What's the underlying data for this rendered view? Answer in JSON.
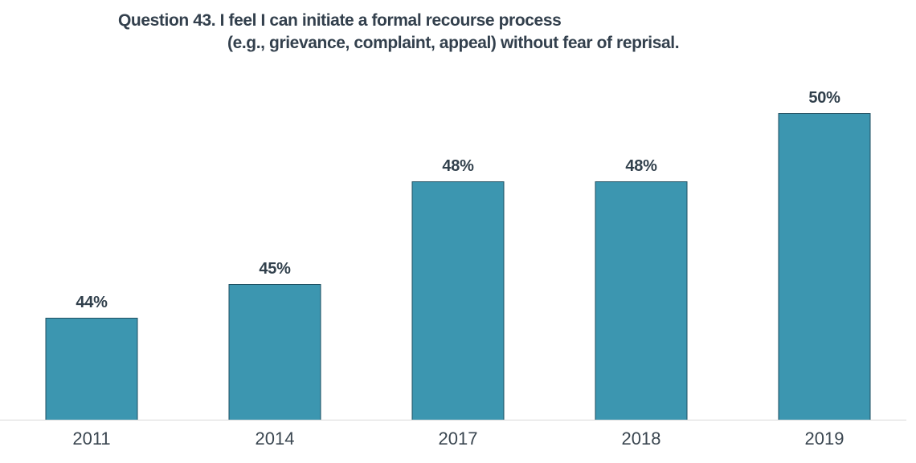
{
  "chart_data": {
    "type": "bar",
    "title_line1": "Question 43. I feel I can initiate a formal recourse process",
    "title_line2": "(e.g., grievance, complaint, appeal) without fear of reprisal.",
    "categories": [
      "2011",
      "2014",
      "2017",
      "2018",
      "2019"
    ],
    "values": [
      44,
      45,
      48,
      48,
      50
    ],
    "data_labels": [
      "44%",
      "45%",
      "48%",
      "48%",
      "50%"
    ],
    "xlabel": "",
    "ylabel": "",
    "ylim": [
      41,
      51
    ],
    "grid": false,
    "legend": false,
    "bar_color": "#3c96b0",
    "bar_border_color": "#1e4f61",
    "label_color": "#31404c",
    "title_color": "#33404d",
    "axis_line_color": "#d9d9d9"
  }
}
